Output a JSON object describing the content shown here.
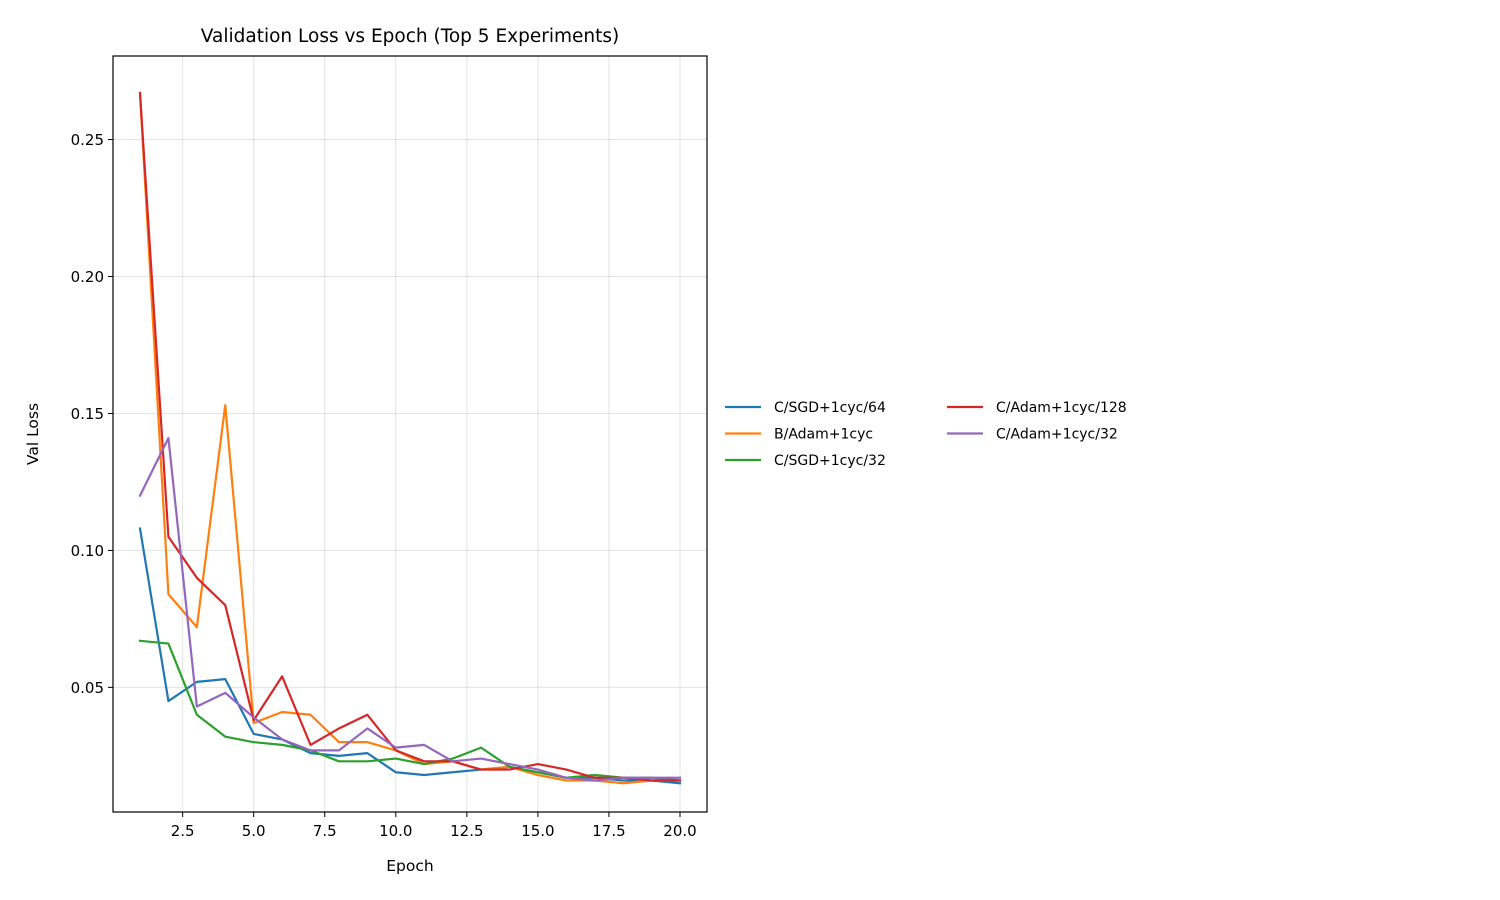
{
  "chart_data": {
    "type": "line",
    "title": "Validation Loss vs Epoch (Top 5 Experiments)",
    "xlabel": "Epoch",
    "ylabel": "Val Loss",
    "xlim": [
      0.05,
      20.95
    ],
    "ylim": [
      0.0045,
      0.2805
    ],
    "xticks": [
      2.5,
      5.0,
      7.5,
      10.0,
      12.5,
      15.0,
      17.5,
      20.0
    ],
    "xtick_labels": [
      "2.5",
      "5.0",
      "7.5",
      "10.0",
      "12.5",
      "15.0",
      "17.5",
      "20.0"
    ],
    "yticks": [
      0.05,
      0.1,
      0.15,
      0.2,
      0.25
    ],
    "ytick_labels": [
      "0.05",
      "0.10",
      "0.15",
      "0.20",
      "0.25"
    ],
    "grid": true,
    "legend_placement": "right, outside axes, two columns",
    "x": [
      1,
      2,
      3,
      4,
      5,
      6,
      7,
      8,
      9,
      10,
      11,
      12,
      13,
      14,
      15,
      16,
      17,
      18,
      19,
      20
    ],
    "series": [
      {
        "name": "C/SGD+1cyc/64",
        "color": "#1f77b4",
        "values": [
          0.108,
          0.045,
          0.052,
          0.053,
          0.033,
          0.031,
          0.026,
          0.025,
          0.026,
          0.019,
          0.018,
          0.019,
          0.02,
          0.021,
          0.019,
          0.017,
          0.017,
          0.016,
          0.016,
          0.015
        ]
      },
      {
        "name": "B/Adam+1cyc",
        "color": "#ff7f0e",
        "values": [
          0.267,
          0.084,
          0.072,
          0.153,
          0.037,
          0.041,
          0.04,
          0.03,
          0.03,
          0.027,
          0.022,
          0.023,
          0.02,
          0.021,
          0.018,
          0.016,
          0.016,
          0.015,
          0.016,
          0.016
        ]
      },
      {
        "name": "C/SGD+1cyc/32",
        "color": "#2ca02c",
        "values": [
          0.067,
          0.066,
          0.04,
          0.032,
          0.03,
          0.029,
          0.027,
          0.023,
          0.023,
          0.024,
          0.022,
          0.024,
          0.028,
          0.021,
          0.019,
          0.017,
          0.018,
          0.017,
          0.017,
          0.016
        ]
      },
      {
        "name": "C/Adam+1cyc/128",
        "color": "#d62728",
        "values": [
          0.267,
          0.105,
          0.09,
          0.08,
          0.038,
          0.054,
          0.029,
          0.035,
          0.04,
          0.027,
          0.023,
          0.023,
          0.02,
          0.02,
          0.022,
          0.02,
          0.017,
          0.017,
          0.016,
          0.016
        ]
      },
      {
        "name": "C/Adam+1cyc/32",
        "color": "#9467bd",
        "values": [
          0.12,
          0.141,
          0.043,
          0.048,
          0.039,
          0.031,
          0.027,
          0.027,
          0.035,
          0.028,
          0.029,
          0.023,
          0.024,
          0.022,
          0.02,
          0.017,
          0.016,
          0.017,
          0.017,
          0.017
        ]
      }
    ]
  }
}
